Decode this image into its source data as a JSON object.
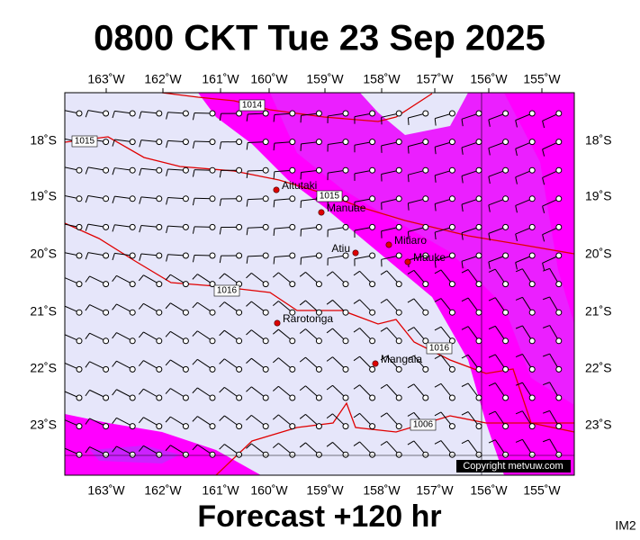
{
  "header": {
    "title": "0800 CKT Tue 23 Sep 2025"
  },
  "map": {
    "longitudes": [
      "163˚W",
      "162˚W",
      "161˚W",
      "160˚W",
      "159˚W",
      "158˚W",
      "157˚W",
      "156˚W",
      "155˚W"
    ],
    "latitudes": [
      "18˚S",
      "19˚S",
      "20˚S",
      "21˚S",
      "22˚S",
      "23˚S"
    ],
    "places": [
      "Aitutaki",
      "Manuae",
      "Atiu",
      "Mitiaro",
      "Mauke",
      "Rarotonga",
      "Mangaia"
    ],
    "isobar_labels": [
      "1014",
      "1015",
      "1015",
      "1016",
      "1016",
      "1006"
    ],
    "copyright": "Copyright metvuw.com"
  },
  "footer": {
    "forecast": "Forecast +120 hr",
    "code": "IM2"
  }
}
